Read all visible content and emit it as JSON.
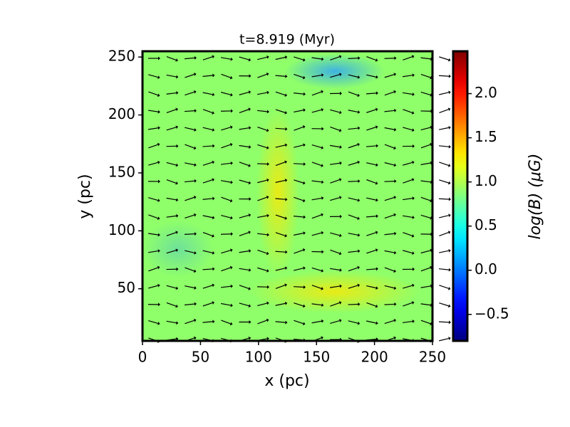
{
  "chart_data": {
    "type": "heatmap",
    "title": "t=8.919 (Myr)",
    "x_label": "x (pc)",
    "y_label": "y (pc)",
    "xlim": [
      0,
      250
    ],
    "xticks": [
      0,
      50,
      100,
      150,
      200,
      250
    ],
    "ylim": [
      5,
      255
    ],
    "yticks": [
      50,
      100,
      150,
      200,
      250
    ],
    "colormap": "jet",
    "colorbar_label": "log(B) (μG)",
    "clim": [
      -0.8,
      2.48
    ],
    "colorbar_ticks": [
      {
        "value": -0.5,
        "label": "−0.5"
      },
      {
        "value": 0,
        "label": "0.0"
      },
      {
        "value": 0.5,
        "label": "0.5"
      },
      {
        "value": 1,
        "label": "1.0"
      },
      {
        "value": 1.5,
        "label": "1.5"
      },
      {
        "value": 2,
        "label": "2.0"
      }
    ]
  }
}
